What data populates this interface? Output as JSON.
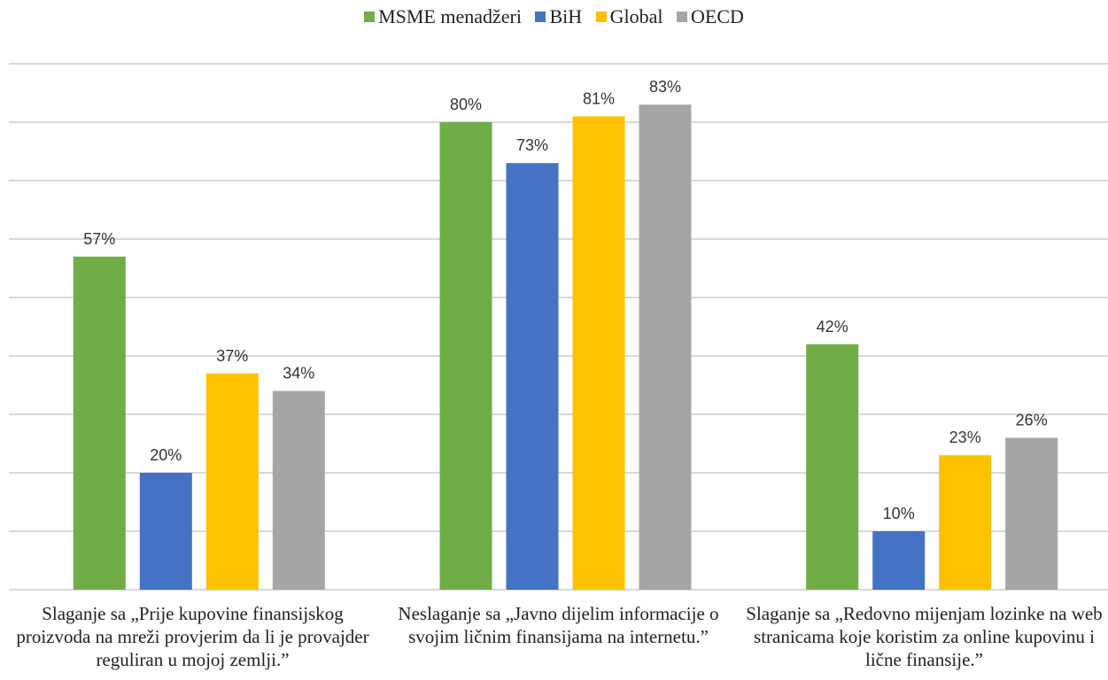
{
  "chart_data": {
    "type": "bar",
    "title": "",
    "xlabel": "",
    "ylabel": "",
    "ylim": [
      0,
      90
    ],
    "grid": true,
    "legend_position": "top",
    "categories": [
      "Slaganje sa „Prije kupovine finansijskog proizvoda na mreži provjerim da li je provajder reguliran u mojoj zemlji.”",
      "Neslaganje sa „Javno dijelim informacije o svojim ličnim finansijama na internetu.”",
      "Slaganje sa „Redovno mijenjam lozinke na web stranicama koje koristim za online kupovinu i lične finansije.”"
    ],
    "series": [
      {
        "name": "MSME menadžeri",
        "color": "#70ad47",
        "values": [
          57,
          80,
          42
        ],
        "labels": [
          "57%",
          "80%",
          "42%"
        ]
      },
      {
        "name": "BiH",
        "color": "#4472c4",
        "values": [
          20,
          73,
          10
        ],
        "labels": [
          "20%",
          "73%",
          "10%"
        ]
      },
      {
        "name": "Global",
        "color": "#ffc000",
        "values": [
          37,
          81,
          23
        ],
        "labels": [
          "37%",
          "81%",
          "23%"
        ]
      },
      {
        "name": "OECD",
        "color": "#a5a5a5",
        "values": [
          34,
          83,
          26
        ],
        "labels": [
          "34%",
          "83%",
          "26%"
        ]
      }
    ]
  }
}
